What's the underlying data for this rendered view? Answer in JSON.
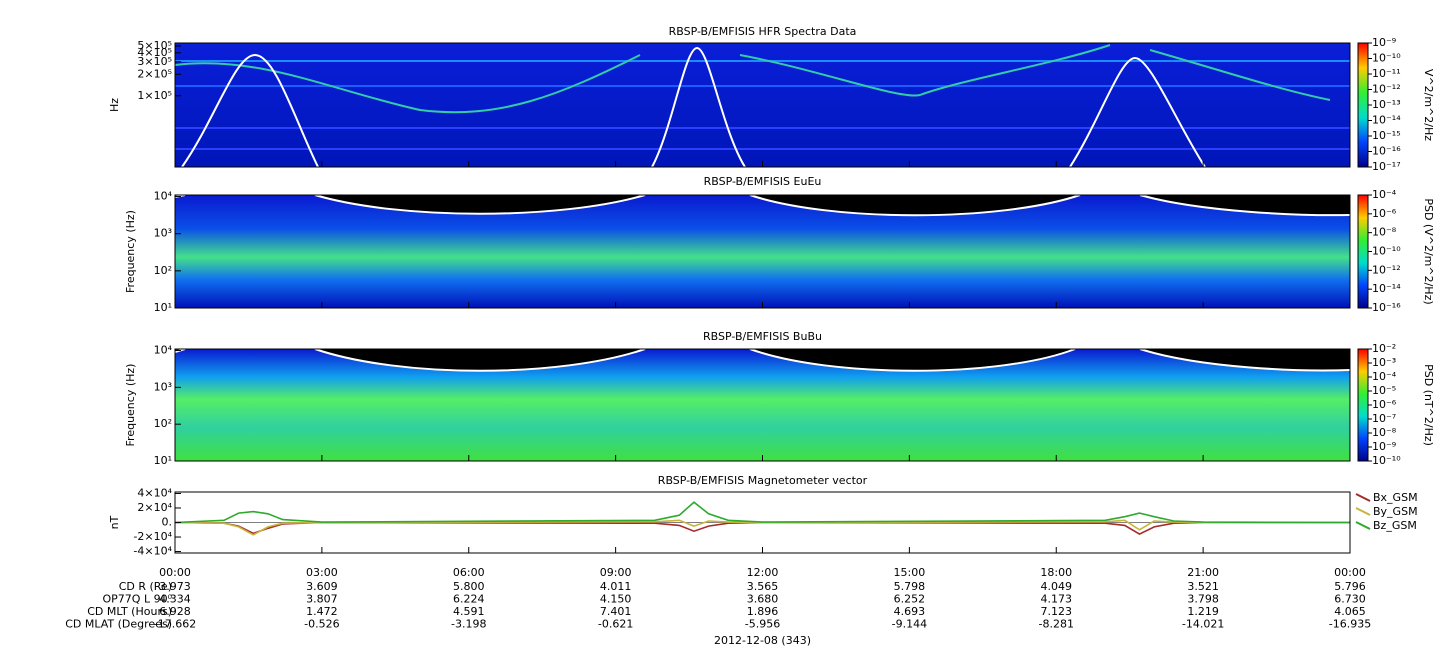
{
  "chart_data": [
    {
      "type": "spectrogram",
      "title": "RBSP-B/EMFISIS  HFR Spectra Data",
      "ylabel": "Hz",
      "ylog": true,
      "ylim": [
        10000,
        550000
      ],
      "yticks": [
        {
          "value": 500000,
          "label": "5×10⁵"
        },
        {
          "value": 400000,
          "label": "4×10⁵"
        },
        {
          "value": 300000,
          "label": "3×10⁵"
        },
        {
          "value": 200000,
          "label": "2×10⁵"
        },
        {
          "value": 100000,
          "label": "1×10⁵"
        }
      ],
      "colorbar": {
        "label": "V^2/m^2/Hz",
        "log": true,
        "lim": [
          1e-17,
          1e-09
        ],
        "ticks": [
          {
            "value": 1e-09,
            "label": "10⁻⁹"
          },
          {
            "value": 1e-10,
            "label": "10⁻¹⁰"
          },
          {
            "value": 1e-11,
            "label": "10⁻¹¹"
          },
          {
            "value": 1e-12,
            "label": "10⁻¹²"
          },
          {
            "value": 1e-13,
            "label": "10⁻¹³"
          },
          {
            "value": 1e-14,
            "label": "10⁻¹⁴"
          },
          {
            "value": 1e-15,
            "label": "10⁻¹⁵"
          },
          {
            "value": 1e-16,
            "label": "10⁻¹⁶"
          },
          {
            "value": 1e-17,
            "label": "10⁻¹⁷"
          }
        ]
      }
    },
    {
      "type": "spectrogram",
      "title": "RBSP-B/EMFISIS  EuEu",
      "ylabel": "Frequency (Hz)",
      "ylog": true,
      "ylim": [
        10,
        11000
      ],
      "yticks": [
        {
          "value": 10000,
          "label": "10⁴"
        },
        {
          "value": 1000,
          "label": "10³"
        },
        {
          "value": 100,
          "label": "10²"
        },
        {
          "value": 10,
          "label": "10¹"
        }
      ],
      "colorbar": {
        "label": "PSD (V^2/m^2/Hz)",
        "log": true,
        "lim": [
          1e-16,
          0.0001
        ],
        "ticks": [
          {
            "value": 0.0001,
            "label": "10⁻⁴"
          },
          {
            "value": 1e-06,
            "label": "10⁻⁶"
          },
          {
            "value": 1e-08,
            "label": "10⁻⁸"
          },
          {
            "value": 1e-10,
            "label": "10⁻¹⁰"
          },
          {
            "value": 1e-12,
            "label": "10⁻¹²"
          },
          {
            "value": 1e-14,
            "label": "10⁻¹⁴"
          },
          {
            "value": 1e-16,
            "label": "10⁻¹⁶"
          }
        ]
      }
    },
    {
      "type": "spectrogram",
      "title": "RBSP-B/EMFISIS  BuBu",
      "ylabel": "Frequency (Hz)",
      "ylog": true,
      "ylim": [
        10,
        11000
      ],
      "yticks": [
        {
          "value": 10000,
          "label": "10⁴"
        },
        {
          "value": 1000,
          "label": "10³"
        },
        {
          "value": 100,
          "label": "10²"
        },
        {
          "value": 10,
          "label": "10¹"
        }
      ],
      "colorbar": {
        "label": "PSD (nT^2/Hz)",
        "log": true,
        "lim": [
          1e-10,
          0.01
        ],
        "ticks": [
          {
            "value": 0.01,
            "label": "10⁻²"
          },
          {
            "value": 0.001,
            "label": "10⁻³"
          },
          {
            "value": 0.0001,
            "label": "10⁻⁴"
          },
          {
            "value": 1e-05,
            "label": "10⁻⁵"
          },
          {
            "value": 1e-06,
            "label": "10⁻⁶"
          },
          {
            "value": 1e-07,
            "label": "10⁻⁷"
          },
          {
            "value": 1e-08,
            "label": "10⁻⁸"
          },
          {
            "value": 1e-09,
            "label": "10⁻⁹"
          },
          {
            "value": 1e-10,
            "label": "10⁻¹⁰"
          }
        ]
      }
    },
    {
      "type": "line",
      "title": "RBSP-B/EMFISIS  Magnetometer vector",
      "ylabel": "nT",
      "ylim": [
        -42000,
        42000
      ],
      "yticks": [
        {
          "value": 40000,
          "label": "4×10⁴"
        },
        {
          "value": 20000,
          "label": "2×10⁴"
        },
        {
          "value": 0,
          "label": "0."
        },
        {
          "value": -20000,
          "label": "-2×10⁴"
        },
        {
          "value": -40000,
          "label": "-4×10⁴"
        }
      ],
      "xlim": [
        0,
        24
      ],
      "xticks": [
        {
          "value": 0,
          "label": "00:00"
        },
        {
          "value": 3,
          "label": "03:00"
        },
        {
          "value": 6,
          "label": "06:00"
        },
        {
          "value": 9,
          "label": "09:00"
        },
        {
          "value": 12,
          "label": "12:00"
        },
        {
          "value": 15,
          "label": "15:00"
        },
        {
          "value": 18,
          "label": "18:00"
        },
        {
          "value": 21,
          "label": "21:00"
        },
        {
          "value": 24,
          "label": "00:00"
        }
      ],
      "x": [
        0,
        1,
        1.3,
        1.6,
        1.9,
        2.2,
        3,
        9.8,
        10.3,
        10.6,
        10.9,
        11.3,
        12,
        19,
        19.4,
        19.7,
        20,
        20.4,
        21,
        24
      ],
      "series": [
        {
          "name": "Bx_GSM",
          "color": "#a52a2a",
          "values": [
            0,
            -1000,
            -5000,
            -15000,
            -8000,
            -2000,
            0,
            -1000,
            -4000,
            -12000,
            -5000,
            -1000,
            0,
            -1000,
            -4000,
            -16000,
            -6000,
            -1000,
            0,
            0
          ]
        },
        {
          "name": "By_GSM",
          "color": "#c8b43c",
          "values": [
            0,
            -1000,
            -6000,
            -17000,
            -6000,
            -1000,
            0,
            1000,
            3000,
            -5000,
            2000,
            500,
            0,
            1000,
            3000,
            -10000,
            2000,
            500,
            0,
            0
          ]
        },
        {
          "name": "Bz_GSM",
          "color": "#2eaa2e",
          "values": [
            0,
            3000,
            13000,
            15000,
            12000,
            4000,
            500,
            3000,
            10000,
            28000,
            12000,
            3000,
            500,
            3000,
            8000,
            13000,
            8000,
            2000,
            500,
            0
          ]
        }
      ]
    }
  ],
  "ephemeris": {
    "rows": [
      {
        "label": "CD R (Re)",
        "values": [
          "3.973",
          "3.609",
          "5.800",
          "4.011",
          "3.565",
          "5.798",
          "4.049",
          "3.521",
          "5.796"
        ]
      },
      {
        "label": "OP77Q L 90⁰",
        "values": [
          "4.334",
          "3.807",
          "6.224",
          "4.150",
          "3.680",
          "6.252",
          "4.173",
          "3.798",
          "6.730"
        ]
      },
      {
        "label": "CD MLT (Hours)",
        "values": [
          "6.928",
          "1.472",
          "4.591",
          "7.401",
          "1.896",
          "4.693",
          "7.123",
          "1.219",
          "4.065"
        ]
      },
      {
        "label": "CD MLAT (Degrees)",
        "values": [
          "-17.662",
          "-0.526",
          "-3.198",
          "-0.621",
          "-5.956",
          "-9.144",
          "-8.281",
          "-14.021",
          "-16.935"
        ]
      }
    ]
  },
  "date_label": "2012-12-08 (343)"
}
